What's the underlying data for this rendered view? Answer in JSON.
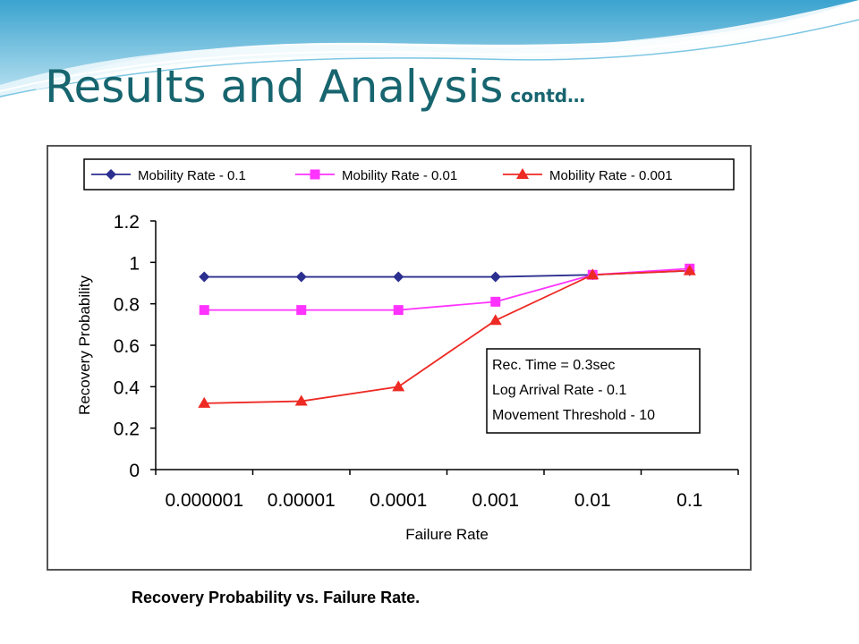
{
  "slide": {
    "title": "Results and Analysis",
    "title_suffix": "contd…",
    "caption": "Recovery Probability vs. Failure Rate."
  },
  "colors": {
    "title": "#17656f",
    "series_1": "#2b2f8f",
    "series_2": "#ff33ff",
    "series_3": "#ee2a24"
  },
  "chart_data": {
    "type": "line",
    "xlabel": "Failure Rate",
    "ylabel": "Recovery Probability",
    "categories": [
      "0.000001",
      "0.00001",
      "0.0001",
      "0.001",
      "0.01",
      "0.1"
    ],
    "ylim": [
      0,
      1.2
    ],
    "yticks": [
      "0",
      "0.2",
      "0.4",
      "0.6",
      "0.8",
      "1",
      "1.2"
    ],
    "legend_position": "top",
    "series": [
      {
        "name": "Mobility Rate - 0.1",
        "marker": "diamond",
        "values": [
          0.93,
          0.93,
          0.93,
          0.93,
          0.94,
          0.96
        ]
      },
      {
        "name": "Mobility Rate - 0.01",
        "marker": "square",
        "values": [
          0.77,
          0.77,
          0.77,
          0.81,
          0.94,
          0.97
        ]
      },
      {
        "name": "Mobility Rate - 0.001",
        "marker": "triangle",
        "values": [
          0.32,
          0.33,
          0.4,
          0.72,
          0.94,
          0.96
        ]
      }
    ],
    "annotation": [
      "Rec. Time = 0.3sec",
      "Log Arrival Rate - 0.1",
      "Movement Threshold - 10"
    ]
  }
}
